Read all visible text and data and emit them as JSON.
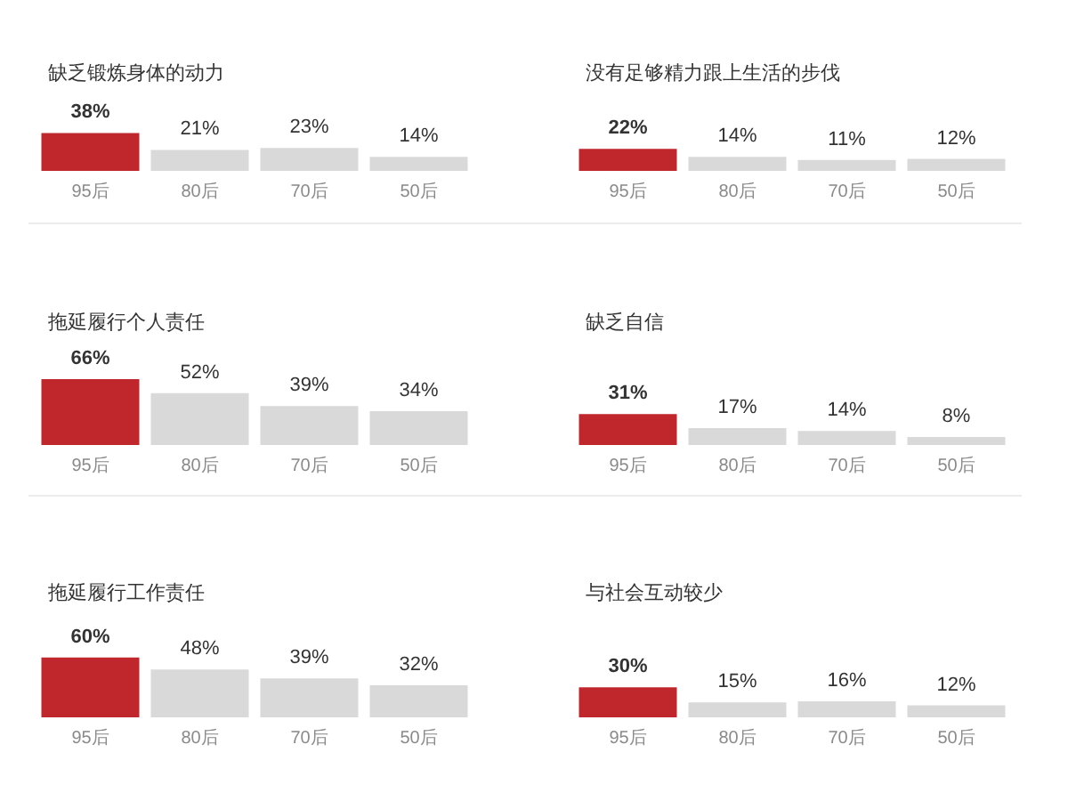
{
  "chart_data": [
    {
      "type": "bar",
      "title": "缺乏锻炼身体的动力",
      "categories": [
        "95后",
        "80后",
        "70后",
        "50后"
      ],
      "values": [
        38,
        21,
        23,
        14
      ],
      "colors": [
        "#c0272d",
        "#d9d9d9",
        "#d9d9d9",
        "#d9d9d9"
      ],
      "value_labels": [
        "38%",
        "21%",
        "23%",
        "14%"
      ],
      "tick_labels": "x"
    },
    {
      "type": "bar",
      "title": "没有足够精力跟上生活的步伐",
      "categories": [
        "95后",
        "80后",
        "70后",
        "50后"
      ],
      "values": [
        22,
        14,
        11,
        12
      ],
      "colors": [
        "#c0272d",
        "#d9d9d9",
        "#d9d9d9",
        "#d9d9d9"
      ],
      "value_labels": [
        "22%",
        "14%",
        "11%",
        "12%"
      ],
      "tick_labels": "x"
    },
    {
      "type": "bar",
      "title": "拖延履行个人责任",
      "categories": [
        "95后",
        "80后",
        "70后",
        "50后"
      ],
      "values": [
        66,
        52,
        39,
        34
      ],
      "colors": [
        "#c0272d",
        "#d9d9d9",
        "#d9d9d9",
        "#d9d9d9"
      ],
      "value_labels": [
        "66%",
        "52%",
        "39%",
        "34%"
      ],
      "tick_labels": "x"
    },
    {
      "type": "bar",
      "title": "缺乏自信",
      "categories": [
        "95后",
        "80后",
        "70后",
        "50后"
      ],
      "values": [
        31,
        17,
        14,
        8
      ],
      "colors": [
        "#c0272d",
        "#d9d9d9",
        "#d9d9d9",
        "#d9d9d9"
      ],
      "value_labels": [
        "31%",
        "17%",
        "14%",
        "8%"
      ],
      "tick_labels": "x"
    },
    {
      "type": "bar",
      "title": "拖延履行工作责任",
      "categories": [
        "95后",
        "80后",
        "70后",
        "50后"
      ],
      "values": [
        60,
        48,
        39,
        32
      ],
      "colors": [
        "#c0272d",
        "#d9d9d9",
        "#d9d9d9",
        "#d9d9d9"
      ],
      "value_labels": [
        "60%",
        "48%",
        "39%",
        "32%"
      ],
      "tick_labels": "x"
    },
    {
      "type": "bar",
      "title": "与社会互动较少",
      "categories": [
        "95后",
        "80后",
        "70后",
        "50后"
      ],
      "values": [
        30,
        15,
        16,
        12
      ],
      "colors": [
        "#c0272d",
        "#d9d9d9",
        "#d9d9d9",
        "#d9d9d9"
      ],
      "value_labels": [
        "30%",
        "15%",
        "16%",
        "12%"
      ],
      "tick_labels": "x"
    }
  ]
}
